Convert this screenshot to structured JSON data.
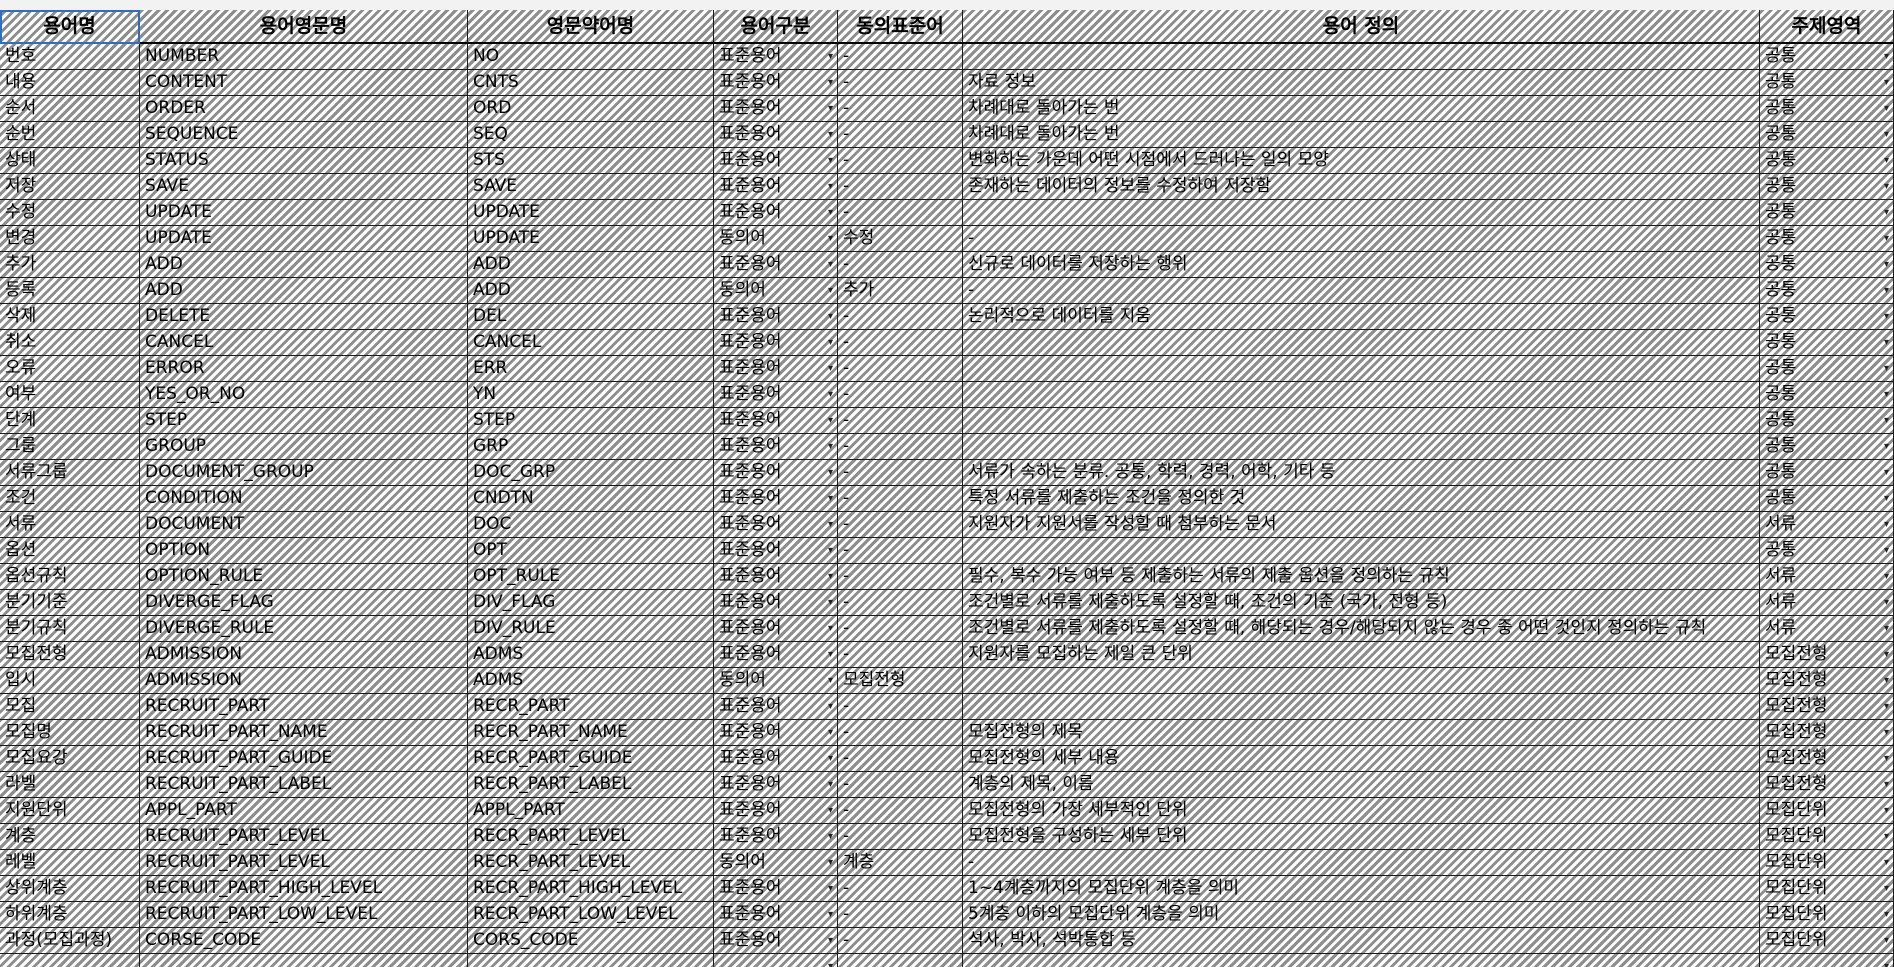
{
  "headers": [
    "용어명",
    "용어영문명",
    "영문약어명",
    "용어구분",
    "동의표준어",
    "용어 정의",
    "주제영역"
  ],
  "dropdown_icon": "chevron-down-icon",
  "rows": [
    [
      "번호",
      "NUMBER",
      "NO",
      "표준용어",
      "-",
      "",
      "공통"
    ],
    [
      "내용",
      "CONTENT",
      "CNTS",
      "표준용어",
      "-",
      "자료 정보",
      "공통"
    ],
    [
      "순서",
      "ORDER",
      "ORD",
      "표준용어",
      "-",
      "차례대로 돌아가는 번",
      "공통"
    ],
    [
      "순번",
      "SEQUENCE",
      "SEQ",
      "표준용어",
      "-",
      "차례대로 돌아가는 번",
      "공통"
    ],
    [
      "상태",
      "STATUS",
      "STS",
      "표준용어",
      "-",
      "변화하는 가운데 어떤 시점에서 드러나는 일의 모양",
      "공통"
    ],
    [
      "저장",
      "SAVE",
      "SAVE",
      "표준용어",
      "-",
      "존재하는 데이터의 정보를 수정하여 저장함",
      "공통"
    ],
    [
      "수정",
      "UPDATE",
      "UPDATE",
      "표준용어",
      "-",
      "",
      "공통"
    ],
    [
      "변경",
      "UPDATE",
      "UPDATE",
      "동의어",
      "수정",
      "-",
      "공통"
    ],
    [
      "추가",
      "ADD",
      "ADD",
      "표준용어",
      "-",
      "신규로 데이터를 저장하는 행위",
      "공통"
    ],
    [
      "등록",
      "ADD",
      "ADD",
      "동의어",
      "추가",
      "-",
      "공통"
    ],
    [
      "삭제",
      "DELETE",
      "DEL",
      "표준용어",
      "-",
      "논리적으로 데이터를 지움",
      "공통"
    ],
    [
      "취소",
      "CANCEL",
      "CANCEL",
      "표준용어",
      "-",
      "",
      "공통"
    ],
    [
      "오류",
      "ERROR",
      "ERR",
      "표준용어",
      "-",
      "",
      "공통"
    ],
    [
      "여부",
      "YES_OR_NO",
      "YN",
      "표준용어",
      "-",
      "",
      "공통"
    ],
    [
      "단계",
      "STEP",
      "STEP",
      "표준용어",
      "-",
      "",
      "공통"
    ],
    [
      "그룹",
      "GROUP",
      "GRP",
      "표준용어",
      "-",
      "",
      "공통"
    ],
    [
      "서류그룹",
      "DOCUMENT_GROUP",
      "DOC_GRP",
      "표준용어",
      "-",
      "서류가 속하는 분류. 공통, 학력, 경력, 어학, 기타 등",
      "공통"
    ],
    [
      "조건",
      "CONDITION",
      "CNDTN",
      "표준용어",
      "-",
      "특정 서류를 제출하는 조건을 정의한 것",
      "공통"
    ],
    [
      "서류",
      "DOCUMENT",
      "DOC",
      "표준용어",
      "-",
      "지원자가 지원서를 작성할 때 첨부하는 문서",
      "서류"
    ],
    [
      "옵션",
      "OPTION",
      "OPT",
      "표준용어",
      "-",
      "",
      "공통"
    ],
    [
      "옵션규칙",
      "OPTION_RULE",
      "OPT_RULE",
      "표준용어",
      "-",
      "필수, 복수 가능 여부 등 제출하는 서류의 제출 옵션을 정의하는 규칙",
      "서류"
    ],
    [
      "분기기준",
      "DIVERGE_FLAG",
      "DIV_FLAG",
      "표준용어",
      "-",
      "조건별로 서류를 제출하도록 설정할 때, 조건의 기준 (국가, 전형 등)",
      "서류"
    ],
    [
      "분기규칙",
      "DIVERGE_RULE",
      "DIV_RULE",
      "표준용어",
      "-",
      "조건별로 서류를 제출하도록 설정할 때, 해당되는 경우/해당되지 않는 경우 중 어떤 것인지 정의하는 규칙",
      "서류"
    ],
    [
      "모집전형",
      "ADMISSION",
      "ADMS",
      "표준용어",
      "-",
      "지원자를 모집하는 제일 큰 단위",
      "모집전형"
    ],
    [
      "입시",
      "ADMISSION",
      "ADMS",
      "동의어",
      "모집전형",
      "",
      "모집전형"
    ],
    [
      "모집",
      "RECRUIT_PART",
      "RECR_PART",
      "표준용어",
      "-",
      "",
      "모집전형"
    ],
    [
      "모집명",
      "RECRUIT_PART_NAME",
      "RECR_PART_NAME",
      "표준용어",
      "-",
      "모집전형의 제목",
      "모집전형"
    ],
    [
      "모집요강",
      "RECRUIT_PART_GUIDE",
      "RECR_PART_GUIDE",
      "표준용어",
      "-",
      "모집전형의 세부 내용",
      "모집전형"
    ],
    [
      "라벨",
      "RECRUIT_PART_LABEL",
      "RECR_PART_LABEL",
      "표준용어",
      "-",
      "계층의 제목, 이름",
      "모집전형"
    ],
    [
      "지원단위",
      "APPL_PART",
      "APPL_PART",
      "표준용어",
      "-",
      "모집전형의 가장 세부적인 단위",
      "모집단위"
    ],
    [
      "계층",
      "RECRUIT_PART_LEVEL",
      "RECR_PART_LEVEL",
      "표준용어",
      "-",
      "모집전형을 구성하는 세부 단위",
      "모집단위"
    ],
    [
      "레벨",
      "RECRUIT_PART_LEVEL",
      "RECR_PART_LEVEL",
      "동의어",
      "계층",
      "-",
      "모집단위"
    ],
    [
      "상위계층",
      "RECRUIT_PART_HIGH_LEVEL",
      "RECR_PART_HIGH_LEVEL",
      "표준용어",
      "-",
      "1~4계층까지의 모집단위 계층을 의미",
      "모집단위"
    ],
    [
      "하위계층",
      "RECRUIT_PART_LOW_LEVEL",
      "RECR_PART_LOW_LEVEL",
      "표준용어",
      "-",
      "5계층 이하의 모집단위 계층을 의미",
      "모집단위"
    ],
    [
      "과정(모집과정)",
      "CORSE_CODE",
      "CORS_CODE",
      "표준용어",
      "-",
      "석사, 박사, 석박통합 등",
      "모집단위"
    ],
    [
      "",
      "",
      "",
      "",
      "",
      "",
      ""
    ]
  ]
}
